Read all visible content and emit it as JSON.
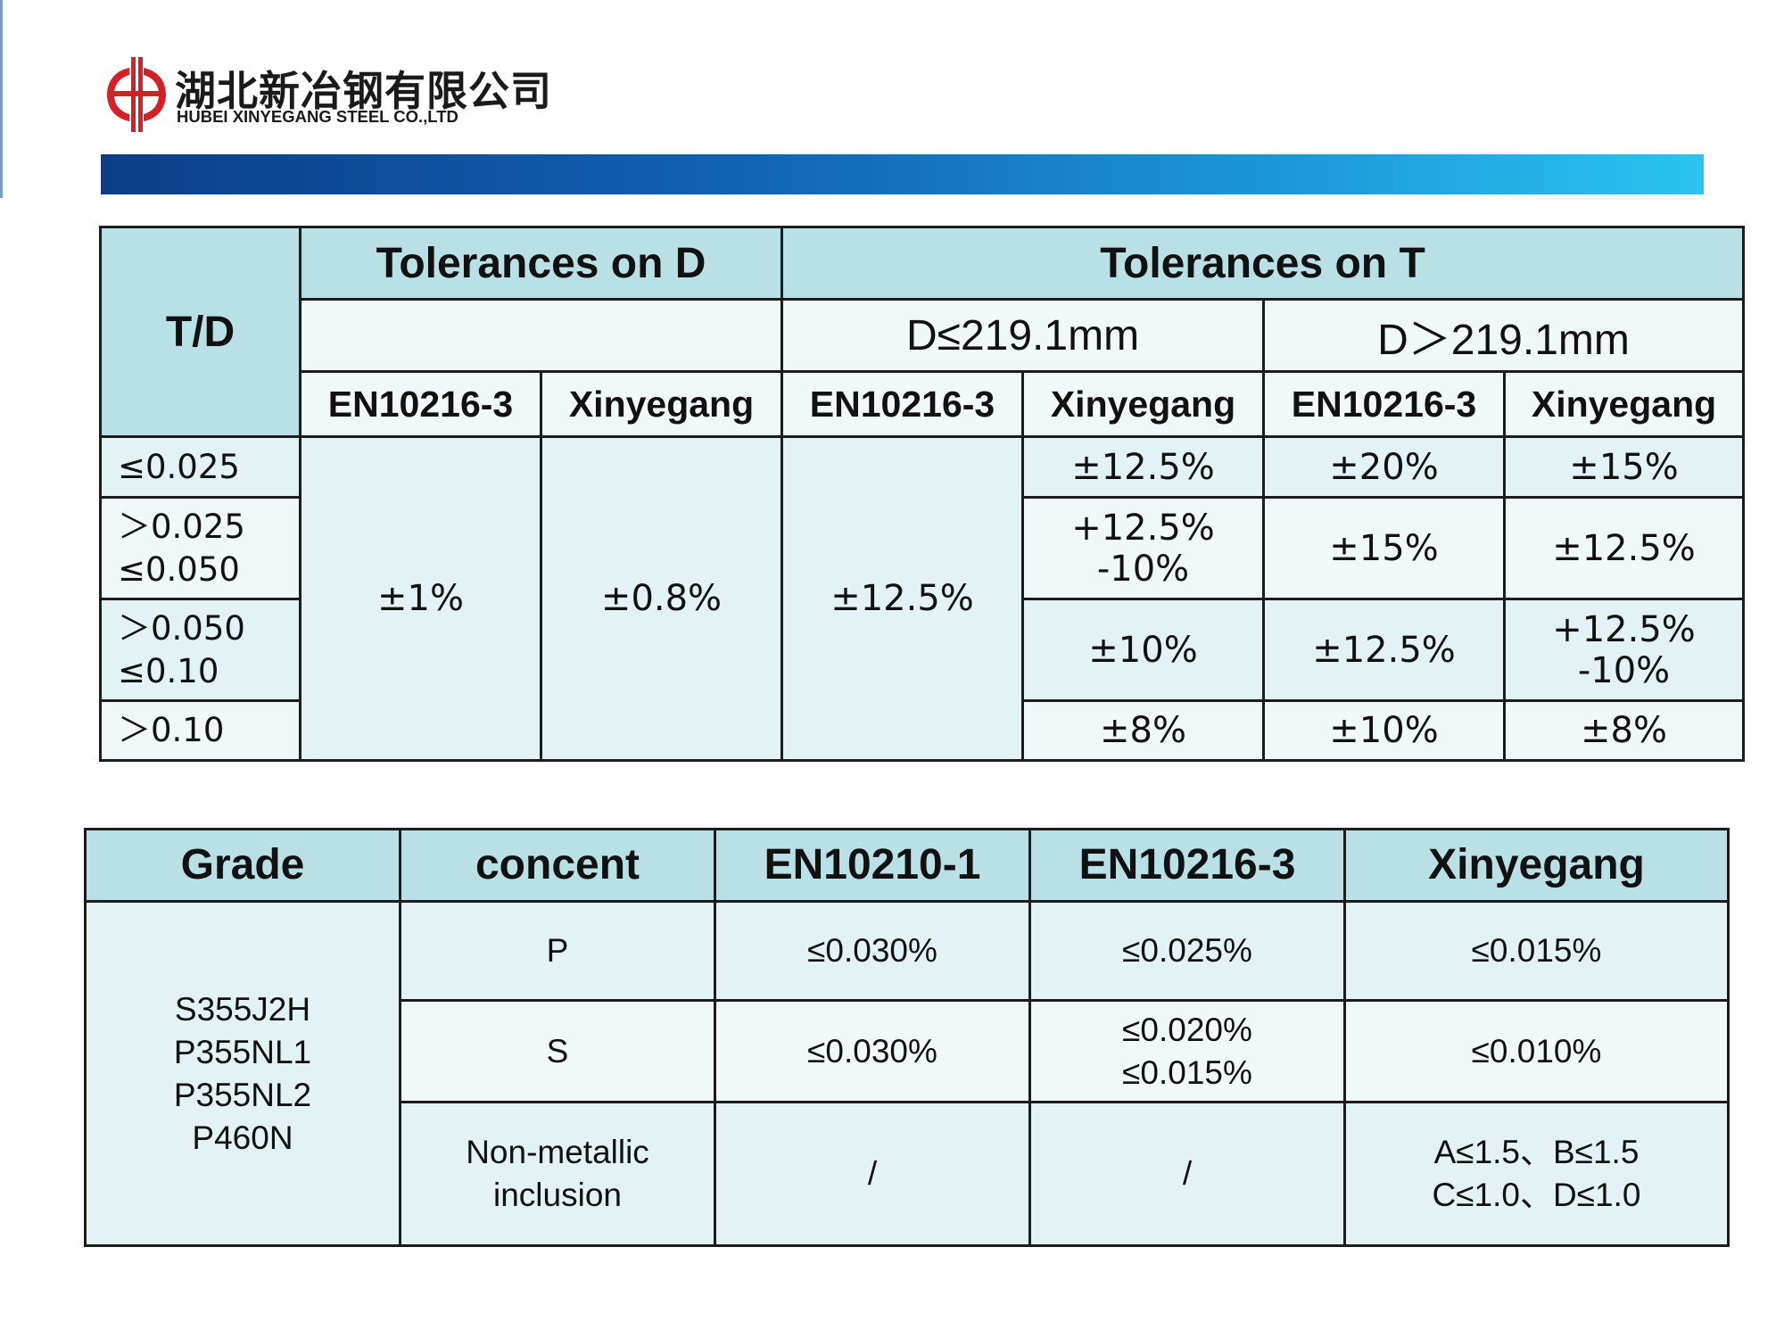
{
  "logo": {
    "name_cn": "湖北新冶钢有限公司",
    "name_en": "HUBEI XINYEGANG STEEL CO.,LTD",
    "brand_color": "#d42127",
    "icon": "company-emblem-icon"
  },
  "banner": {
    "gradient_from": "#0c3e86",
    "gradient_to": "#2cc4ee"
  },
  "colors": {
    "header_bg": "#b8e0e5",
    "cell_bg_1": "#e3f2f5",
    "cell_bg_2": "#f1f8fa",
    "border": "#1c1c1c"
  },
  "tolerance_table": {
    "td_header": "T/D",
    "tol_d_header": "Tolerances on D",
    "tol_t_header": "Tolerances on T",
    "d_le": "D≤219.1mm",
    "d_gt": "D＞219.1mm",
    "col_en": "EN10216-3",
    "col_xyg": "Xinyegang",
    "d_en_value": "±1%",
    "d_xyg_value": "±0.8%",
    "t_le_en_value": "±12.5%",
    "rows": [
      {
        "td_line1": "≤0.025",
        "td_line2": "",
        "t_le_xyg_1": "±12.5%",
        "t_le_xyg_2": "",
        "t_gt_en": "±20%",
        "t_gt_xyg_1": "±15%",
        "t_gt_xyg_2": ""
      },
      {
        "td_line1": "＞0.025",
        "td_line2": "≤0.050",
        "t_le_xyg_1": "+12.5%",
        "t_le_xyg_2": "-10%",
        "t_gt_en": "±15%",
        "t_gt_xyg_1": "±12.5%",
        "t_gt_xyg_2": ""
      },
      {
        "td_line1": "＞0.050",
        "td_line2": "≤0.10",
        "t_le_xyg_1": "±10%",
        "t_le_xyg_2": "",
        "t_gt_en": "±12.5%",
        "t_gt_xyg_1": "+12.5%",
        "t_gt_xyg_2": "-10%"
      },
      {
        "td_line1": "＞0.10",
        "td_line2": "",
        "t_le_xyg_1": "±8%",
        "t_le_xyg_2": "",
        "t_gt_en": "±10%",
        "t_gt_xyg_1": "±8%",
        "t_gt_xyg_2": ""
      }
    ]
  },
  "content_table": {
    "headers": {
      "grade": "Grade",
      "concent": "concent",
      "en10210": "EN10210-1",
      "en10216": "EN10216-3",
      "xinyegang": "Xinyegang"
    },
    "grades": [
      "S355J2H",
      "P355NL1",
      "P355NL2",
      "P460N"
    ],
    "rows": [
      {
        "concent_1": "P",
        "concent_2": "",
        "en10210": "≤0.030%",
        "en10216_1": "≤0.025%",
        "en10216_2": "",
        "xyg_1": "≤0.015%",
        "xyg_2": ""
      },
      {
        "concent_1": "S",
        "concent_2": "",
        "en10210": "≤0.030%",
        "en10216_1": "≤0.020%",
        "en10216_2": "≤0.015%",
        "xyg_1": "≤0.010%",
        "xyg_2": ""
      },
      {
        "concent_1": "Non-metallic",
        "concent_2": "inclusion",
        "en10210": "/",
        "en10216_1": "/",
        "en10216_2": "",
        "xyg_1": "A≤1.5、B≤1.5",
        "xyg_2": "C≤1.0、D≤1.0"
      }
    ]
  }
}
